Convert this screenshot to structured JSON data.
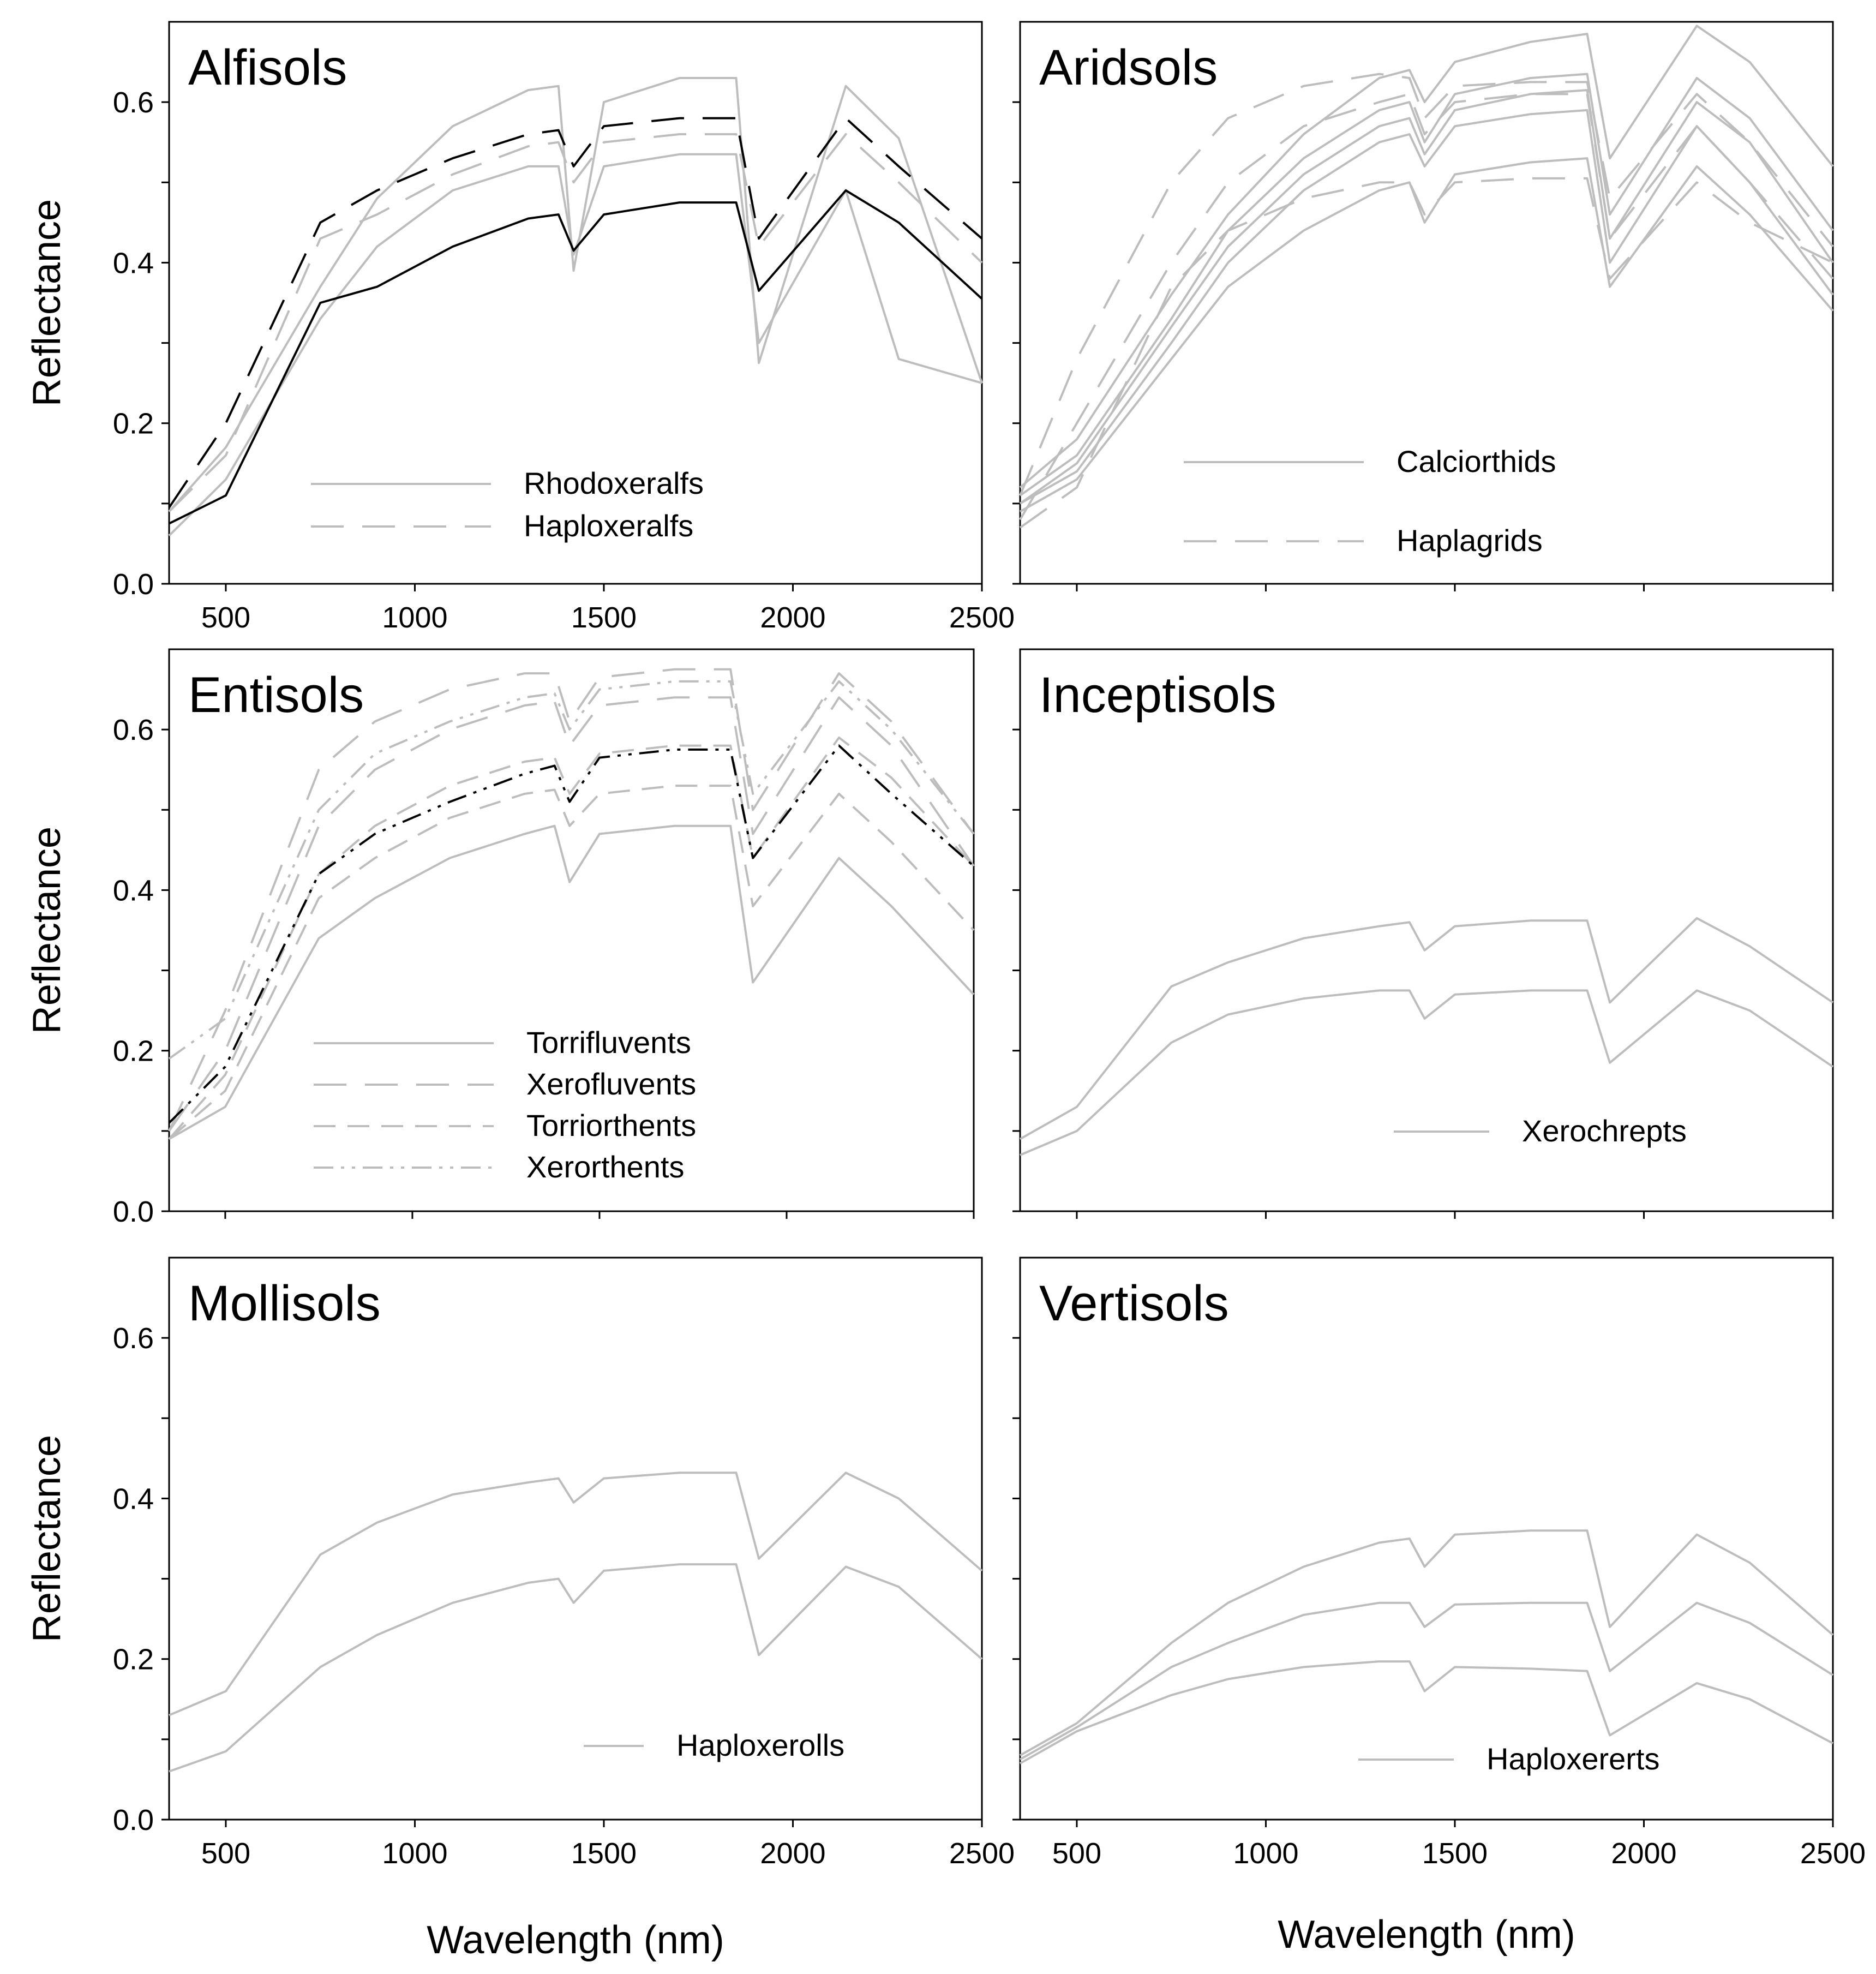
{
  "y_axis_title": "Reflectance",
  "x_axis_title": "Wavelength (nm)",
  "chart_data": [
    {
      "type": "line",
      "title": "Alfisols",
      "xlabel": "",
      "ylabel": "Reflectance",
      "xlim": [
        350,
        2500
      ],
      "ylim": [
        0,
        0.7
      ],
      "xticks": [
        "500",
        "1000",
        "1500",
        "2000",
        "2500"
      ],
      "yticks": [
        "0.0",
        "0.2",
        "0.4",
        "0.6"
      ],
      "legend": [
        {
          "label": "Rhodoxeralfs",
          "dash": "solid"
        },
        {
          "label": "Haploxeralfs",
          "dash": "long"
        }
      ],
      "series": [
        {
          "name": "Rhodoxeralfs",
          "dash": "solid",
          "color": "#bdbdbd",
          "values": [
            0.09,
            0.17,
            0.37,
            0.48,
            0.57,
            0.615,
            0.62,
            0.39,
            0.6,
            0.63,
            0.63,
            0.275,
            0.62,
            0.555,
            0.25
          ]
        },
        {
          "name": "Rhodoxeralfs",
          "dash": "solid",
          "color": "#bdbdbd",
          "values": [
            0.06,
            0.13,
            0.33,
            0.42,
            0.49,
            0.52,
            0.52,
            0.41,
            0.52,
            0.535,
            0.535,
            0.3,
            0.49,
            0.28,
            0.25
          ]
        },
        {
          "name": "Rhodoxeralfs",
          "dash": "solid",
          "color": "#000000",
          "values": [
            0.075,
            0.11,
            0.35,
            0.37,
            0.42,
            0.455,
            0.46,
            0.415,
            0.46,
            0.475,
            0.475,
            0.365,
            0.49,
            0.45,
            0.355
          ]
        },
        {
          "name": "Haploxeralfs",
          "dash": "long",
          "color": "#000000",
          "values": [
            0.095,
            0.2,
            0.45,
            0.49,
            0.53,
            0.56,
            0.565,
            0.52,
            0.57,
            0.58,
            0.58,
            0.43,
            0.58,
            0.52,
            0.43
          ]
        },
        {
          "name": "Haploxeralfs",
          "dash": "long",
          "color": "#bdbdbd",
          "values": [
            0.09,
            0.16,
            0.43,
            0.46,
            0.51,
            0.545,
            0.55,
            0.5,
            0.55,
            0.56,
            0.56,
            0.42,
            0.56,
            0.5,
            0.4
          ]
        }
      ]
    },
    {
      "type": "line",
      "title": "Aridsols",
      "xlabel": "",
      "ylabel": "",
      "xlim": [
        350,
        2500
      ],
      "ylim": [
        0,
        0.7
      ],
      "xticks": [],
      "yticks": [],
      "legend": [
        {
          "label": "Calciorthids",
          "dash": "solid"
        },
        {
          "label": "Haplagrids",
          "dash": "long"
        }
      ],
      "series": [
        {
          "name": "Calciorthids",
          "dash": "solid",
          "color": "#bdbdbd",
          "values": [
            0.12,
            0.18,
            0.36,
            0.46,
            0.56,
            0.63,
            0.64,
            0.6,
            0.65,
            0.675,
            0.685,
            0.53,
            0.695,
            0.65,
            0.52
          ]
        },
        {
          "name": "Calciorthids",
          "dash": "solid",
          "color": "#bdbdbd",
          "values": [
            0.11,
            0.16,
            0.33,
            0.44,
            0.53,
            0.59,
            0.6,
            0.55,
            0.61,
            0.63,
            0.635,
            0.46,
            0.63,
            0.58,
            0.44
          ]
        },
        {
          "name": "Calciorthids",
          "dash": "solid",
          "color": "#bdbdbd",
          "values": [
            0.1,
            0.15,
            0.32,
            0.42,
            0.51,
            0.57,
            0.58,
            0.535,
            0.59,
            0.61,
            0.615,
            0.43,
            0.6,
            0.55,
            0.4
          ]
        },
        {
          "name": "Calciorthids",
          "dash": "solid",
          "color": "#bdbdbd",
          "values": [
            0.1,
            0.14,
            0.3,
            0.4,
            0.49,
            0.55,
            0.56,
            0.52,
            0.57,
            0.585,
            0.59,
            0.4,
            0.57,
            0.5,
            0.36
          ]
        },
        {
          "name": "Calciorthids",
          "dash": "solid",
          "color": "#bdbdbd",
          "values": [
            0.09,
            0.13,
            0.28,
            0.37,
            0.44,
            0.49,
            0.5,
            0.45,
            0.51,
            0.525,
            0.53,
            0.37,
            0.52,
            0.46,
            0.34
          ]
        },
        {
          "name": "Haplagrids",
          "dash": "long",
          "color": "#bdbdbd",
          "values": [
            0.11,
            0.28,
            0.5,
            0.58,
            0.62,
            0.635,
            0.63,
            0.58,
            0.62,
            0.625,
            0.625,
            0.48,
            0.61,
            0.55,
            0.42
          ]
        },
        {
          "name": "Haplagrids",
          "dash": "long",
          "color": "#bdbdbd",
          "values": [
            0.08,
            0.2,
            0.4,
            0.5,
            0.57,
            0.6,
            0.61,
            0.56,
            0.6,
            0.61,
            0.61,
            0.43,
            0.57,
            0.5,
            0.38
          ]
        },
        {
          "name": "Haplagrids",
          "dash": "long",
          "color": "#bdbdbd",
          "values": [
            0.07,
            0.12,
            0.37,
            0.44,
            0.48,
            0.5,
            0.5,
            0.46,
            0.5,
            0.505,
            0.505,
            0.38,
            0.5,
            0.45,
            0.4
          ]
        }
      ]
    },
    {
      "type": "line",
      "title": "Entisols",
      "xlabel": "",
      "ylabel": "Reflectance",
      "xlim": [
        350,
        2500
      ],
      "ylim": [
        0,
        0.7
      ],
      "xticks": [],
      "yticks": [
        "0.0",
        "0.2",
        "0.4",
        "0.6"
      ],
      "legend": [
        {
          "label": "Torrifluvents",
          "dash": "solid"
        },
        {
          "label": "Xerofluvents",
          "dash": "long"
        },
        {
          "label": "Torriorthents",
          "dash": "medium"
        },
        {
          "label": "Xerorthents",
          "dash": "dashdotdot"
        }
      ],
      "series": [
        {
          "name": "Torrifluvents",
          "dash": "solid",
          "color": "#bdbdbd",
          "values": [
            0.09,
            0.13,
            0.34,
            0.39,
            0.44,
            0.47,
            0.48,
            0.41,
            0.47,
            0.48,
            0.48,
            0.285,
            0.44,
            0.38,
            0.27
          ]
        },
        {
          "name": "Xerofluvents",
          "dash": "long",
          "color": "#bdbdbd",
          "values": [
            0.1,
            0.25,
            0.55,
            0.61,
            0.65,
            0.67,
            0.67,
            0.61,
            0.665,
            0.675,
            0.675,
            0.5,
            0.67,
            0.61,
            0.47
          ]
        },
        {
          "name": "Xerofluvents",
          "dash": "long",
          "color": "#bdbdbd",
          "values": [
            0.1,
            0.2,
            0.48,
            0.55,
            0.6,
            0.63,
            0.635,
            0.58,
            0.63,
            0.64,
            0.64,
            0.47,
            0.64,
            0.58,
            0.43
          ]
        },
        {
          "name": "Torriorthents",
          "dash": "medium",
          "color": "#bdbdbd",
          "values": [
            0.09,
            0.17,
            0.42,
            0.48,
            0.53,
            0.56,
            0.565,
            0.52,
            0.57,
            0.58,
            0.58,
            0.44,
            0.59,
            0.54,
            0.43
          ]
        },
        {
          "name": "Torriorthents",
          "dash": "medium",
          "color": "#bdbdbd",
          "values": [
            0.09,
            0.15,
            0.39,
            0.44,
            0.49,
            0.52,
            0.525,
            0.48,
            0.52,
            0.53,
            0.53,
            0.38,
            0.52,
            0.46,
            0.35
          ]
        },
        {
          "name": "Xerorthents",
          "dash": "dashdotdot",
          "color": "#000000",
          "values": [
            0.11,
            0.18,
            0.42,
            0.47,
            0.51,
            0.545,
            0.555,
            0.51,
            0.565,
            0.575,
            0.575,
            0.44,
            0.58,
            0.52,
            0.43
          ]
        },
        {
          "name": "Xerorthents",
          "dash": "dashdotdot",
          "color": "#bdbdbd",
          "values": [
            0.19,
            0.24,
            0.5,
            0.57,
            0.61,
            0.64,
            0.645,
            0.6,
            0.65,
            0.66,
            0.66,
            0.52,
            0.66,
            0.6,
            0.47
          ]
        }
      ]
    },
    {
      "type": "line",
      "title": "Inceptisols",
      "xlabel": "",
      "ylabel": "",
      "xlim": [
        350,
        2500
      ],
      "ylim": [
        0,
        0.7
      ],
      "xticks": [],
      "yticks": [],
      "legend": [
        {
          "label": "Xerochrepts",
          "dash": "solid"
        }
      ],
      "series": [
        {
          "name": "Xerochrepts",
          "dash": "solid",
          "color": "#bdbdbd",
          "values": [
            0.09,
            0.13,
            0.28,
            0.31,
            0.34,
            0.355,
            0.36,
            0.325,
            0.355,
            0.362,
            0.362,
            0.26,
            0.365,
            0.33,
            0.26
          ]
        },
        {
          "name": "Xerochrepts",
          "dash": "solid",
          "color": "#bdbdbd",
          "values": [
            0.07,
            0.1,
            0.21,
            0.245,
            0.265,
            0.275,
            0.275,
            0.24,
            0.27,
            0.275,
            0.275,
            0.185,
            0.275,
            0.25,
            0.18
          ]
        }
      ]
    },
    {
      "type": "line",
      "title": "Mollisols",
      "xlabel": "Wavelength (nm)",
      "ylabel": "Reflectance",
      "xlim": [
        350,
        2500
      ],
      "ylim": [
        0,
        0.7
      ],
      "xticks": [
        "500",
        "1000",
        "1500",
        "2000",
        "2500"
      ],
      "yticks": [
        "0.0",
        "0.2",
        "0.4",
        "0.6"
      ],
      "legend": [
        {
          "label": "Haploxerolls",
          "dash": "solid"
        }
      ],
      "series": [
        {
          "name": "Haploxerolls",
          "dash": "solid",
          "color": "#bdbdbd",
          "values": [
            0.13,
            0.16,
            0.33,
            0.37,
            0.405,
            0.42,
            0.425,
            0.395,
            0.425,
            0.432,
            0.432,
            0.325,
            0.432,
            0.4,
            0.31
          ]
        },
        {
          "name": "Haploxerolls",
          "dash": "solid",
          "color": "#bdbdbd",
          "values": [
            0.06,
            0.085,
            0.19,
            0.23,
            0.27,
            0.295,
            0.3,
            0.27,
            0.31,
            0.318,
            0.318,
            0.205,
            0.315,
            0.29,
            0.2
          ]
        }
      ]
    },
    {
      "type": "line",
      "title": "Vertisols",
      "xlabel": "Wavelength (nm)",
      "ylabel": "",
      "xlim": [
        350,
        2500
      ],
      "ylim": [
        0,
        0.7
      ],
      "xticks": [
        "500",
        "1000",
        "1500",
        "2000",
        "2500"
      ],
      "yticks": [],
      "legend": [
        {
          "label": "Haploxererts",
          "dash": "solid"
        }
      ],
      "series": [
        {
          "name": "Haploxererts",
          "dash": "solid",
          "color": "#bdbdbd",
          "values": [
            0.08,
            0.12,
            0.22,
            0.27,
            0.315,
            0.345,
            0.35,
            0.315,
            0.355,
            0.36,
            0.36,
            0.24,
            0.355,
            0.32,
            0.23
          ]
        },
        {
          "name": "Haploxererts",
          "dash": "solid",
          "color": "#bdbdbd",
          "values": [
            0.075,
            0.115,
            0.19,
            0.22,
            0.255,
            0.27,
            0.27,
            0.24,
            0.268,
            0.27,
            0.27,
            0.185,
            0.27,
            0.245,
            0.18
          ]
        },
        {
          "name": "Haploxererts",
          "dash": "solid",
          "color": "#bdbdbd",
          "values": [
            0.07,
            0.11,
            0.155,
            0.175,
            0.19,
            0.197,
            0.197,
            0.16,
            0.19,
            0.188,
            0.185,
            0.105,
            0.17,
            0.15,
            0.095
          ]
        }
      ]
    }
  ],
  "x_points": [
    350,
    500,
    750,
    900,
    1100,
    1300,
    1380,
    1420,
    1500,
    1700,
    1850,
    1910,
    2140,
    2280,
    2500
  ]
}
